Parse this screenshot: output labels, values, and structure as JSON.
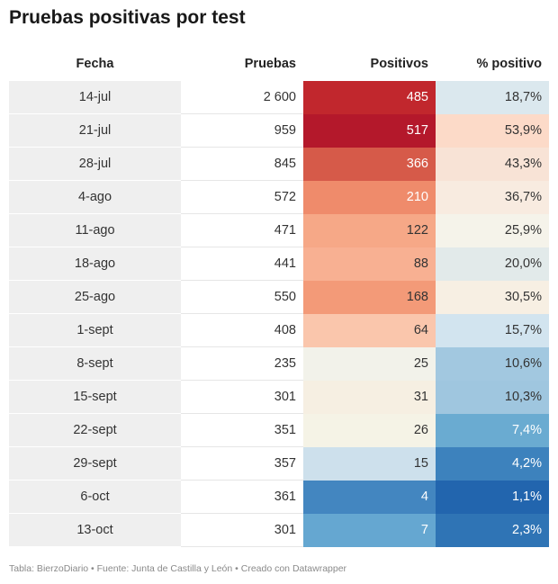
{
  "title": "Pruebas positivas por test",
  "footer": "Tabla: BierzoDiario • Fuente: Junta de Castilla y León • Creado con Datawrapper",
  "chart_data": {
    "type": "table",
    "title": "Pruebas positivas por test",
    "columns": [
      "Fecha",
      "Pruebas",
      "Positivos",
      "% positivo"
    ],
    "rows": [
      {
        "fecha": "14-jul",
        "pruebas": "2 600",
        "positivos": "485",
        "pct": "18,7%",
        "pos_value": 485,
        "pct_value": 18.7,
        "pos_color": "#c1272d",
        "pct_color": "#dbe8ee"
      },
      {
        "fecha": "21-jul",
        "pruebas": "959",
        "positivos": "517",
        "pct": "53,9%",
        "pos_value": 517,
        "pct_value": 53.9,
        "pos_color": "#b4182b",
        "pct_color": "#fcdac8"
      },
      {
        "fecha": "28-jul",
        "pruebas": "845",
        "positivos": "366",
        "pct": "43,3%",
        "pos_value": 366,
        "pct_value": 43.3,
        "pos_color": "#d65a49",
        "pct_color": "#f8e3d6"
      },
      {
        "fecha": "4-ago",
        "pruebas": "572",
        "positivos": "210",
        "pct": "36,7%",
        "pos_value": 210,
        "pct_value": 36.7,
        "pos_color": "#ef8b6b",
        "pct_color": "#f8ebe0"
      },
      {
        "fecha": "11-ago",
        "pruebas": "471",
        "positivos": "122",
        "pct": "25,9%",
        "pos_value": 122,
        "pct_value": 25.9,
        "pos_color": "#f6a887",
        "pct_color": "#f5f3ea"
      },
      {
        "fecha": "18-ago",
        "pruebas": "441",
        "positivos": "88",
        "pct": "20,0%",
        "pos_value": 88,
        "pct_value": 20.0,
        "pos_color": "#f8b092",
        "pct_color": "#e2eaea"
      },
      {
        "fecha": "25-ago",
        "pruebas": "550",
        "positivos": "168",
        "pct": "30,5%",
        "pos_value": 168,
        "pct_value": 30.5,
        "pos_color": "#f39a78",
        "pct_color": "#f7efe3"
      },
      {
        "fecha": "1-sept",
        "pruebas": "408",
        "positivos": "64",
        "pct": "15,7%",
        "pos_value": 64,
        "pct_value": 15.7,
        "pos_color": "#fac6ac",
        "pct_color": "#d2e4ef"
      },
      {
        "fecha": "8-sept",
        "pruebas": "235",
        "positivos": "25",
        "pct": "10,6%",
        "pos_value": 25,
        "pct_value": 10.6,
        "pos_color": "#f2f2ea",
        "pct_color": "#a2c8e0"
      },
      {
        "fecha": "15-sept",
        "pruebas": "301",
        "positivos": "31",
        "pct": "10,3%",
        "pos_value": 31,
        "pct_value": 10.3,
        "pos_color": "#f6efe2",
        "pct_color": "#9fc6df"
      },
      {
        "fecha": "22-sept",
        "pruebas": "351",
        "positivos": "26",
        "pct": "7,4%",
        "pos_value": 26,
        "pct_value": 7.4,
        "pos_color": "#f5f3e6",
        "pct_color": "#6aabd1"
      },
      {
        "fecha": "29-sept",
        "pruebas": "357",
        "positivos": "15",
        "pct": "4,2%",
        "pos_value": 15,
        "pct_value": 4.2,
        "pos_color": "#cde0ec",
        "pct_color": "#3d82bd"
      },
      {
        "fecha": "6-oct",
        "pruebas": "361",
        "positivos": "4",
        "pct": "1,1%",
        "pos_value": 4,
        "pct_value": 1.1,
        "pos_color": "#4386c0",
        "pct_color": "#2265ae"
      },
      {
        "fecha": "13-oct",
        "pruebas": "301",
        "positivos": "7",
        "pct": "2,3%",
        "pos_value": 7,
        "pct_value": 2.3,
        "pos_color": "#65a7d1",
        "pct_color": "#2f74b5"
      }
    ]
  }
}
